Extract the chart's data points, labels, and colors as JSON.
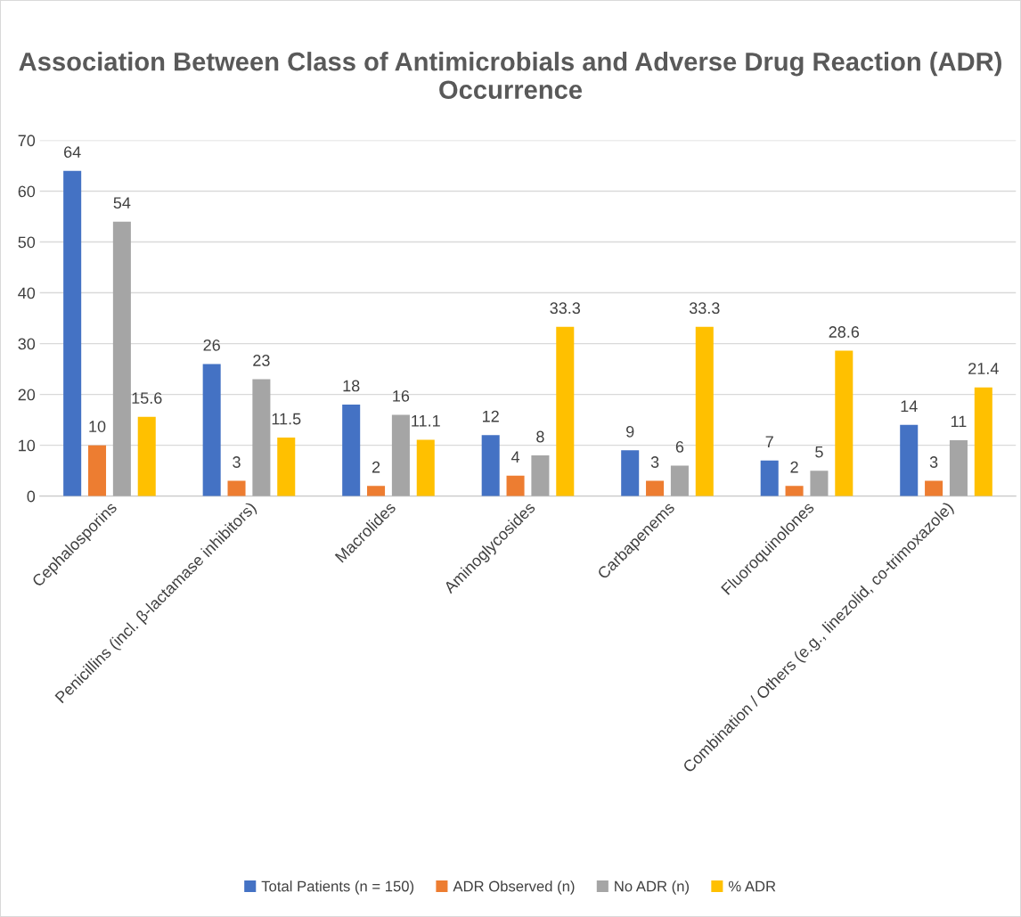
{
  "chart_data": {
    "type": "bar",
    "title": "Association Between Class of Antimicrobials and Adverse Drug Reaction (ADR) Occurrence",
    "categories": [
      "Cephalosporins",
      "Penicillins (incl. β-lactamase inhibitors)",
      "Macrolides",
      "Aminoglycosides",
      "Carbapenems",
      "Fluoroquinolones",
      "Combination / Others (e.g., linezolid, co-trimoxazole)"
    ],
    "series": [
      {
        "name": "Total Patients (n = 150)",
        "color": "#4472c4",
        "values": [
          64,
          26,
          18,
          12,
          9,
          7,
          14
        ]
      },
      {
        "name": "ADR Observed (n)",
        "color": "#ed7d31",
        "values": [
          10,
          3,
          2,
          4,
          3,
          2,
          3
        ]
      },
      {
        "name": "No ADR (n)",
        "color": "#a5a5a5",
        "values": [
          54,
          23,
          16,
          8,
          6,
          5,
          11
        ]
      },
      {
        "name": "% ADR",
        "color": "#ffc000",
        "values": [
          15.6,
          11.5,
          11.1,
          33.3,
          33.3,
          28.6,
          21.4
        ]
      }
    ],
    "ylim": [
      0,
      70
    ],
    "yticks": [
      0,
      10,
      20,
      30,
      40,
      50,
      60,
      70
    ],
    "grid": "y",
    "legend": "bottom",
    "data_labels": true
  }
}
